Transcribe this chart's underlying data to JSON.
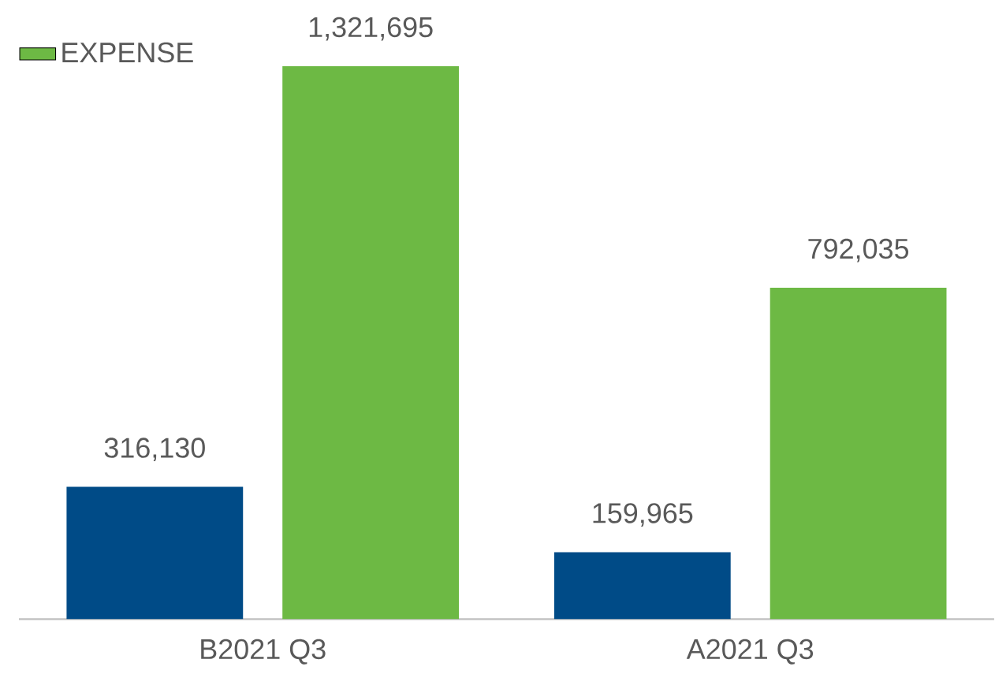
{
  "chart_data": {
    "type": "bar",
    "categories": [
      "B2021 Q3",
      "A2021 Q3"
    ],
    "series": [
      {
        "color": "#004b87",
        "values": [
          316130,
          159965
        ],
        "value_labels": [
          "316,130",
          "159,965"
        ]
      },
      {
        "name": "EXPENSE",
        "color": "#6db944",
        "values": [
          1321695,
          792035
        ],
        "value_labels": [
          "1,321,695",
          "792,035"
        ]
      }
    ],
    "data_labels": true,
    "legend": "top left"
  }
}
